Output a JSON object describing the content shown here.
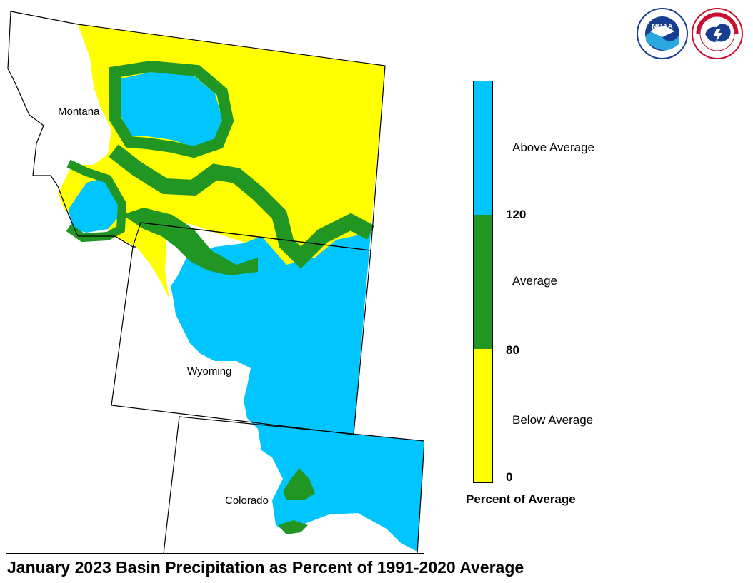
{
  "title": "January 2023 Basin Precipitation as Percent of 1991-2020 Average",
  "states": {
    "montana": "Montana",
    "wyoming": "Wyoming",
    "colorado": "Colorado"
  },
  "legend": {
    "title": "Percent of Average",
    "categories": {
      "above": "Above Average",
      "average": "Average",
      "below": "Below Average"
    },
    "ticks": {
      "t120": "120",
      "t80": "80",
      "t0": "0"
    },
    "colors": {
      "above": "#00c5ff",
      "average": "#229622",
      "below": "#ffff00"
    }
  },
  "logos": {
    "noaa": {
      "text": "NOAA",
      "icon": "noaa-logo"
    },
    "nws": {
      "text": "NATIONAL WEATHER SERVICE",
      "icon": "nws-logo"
    }
  }
}
